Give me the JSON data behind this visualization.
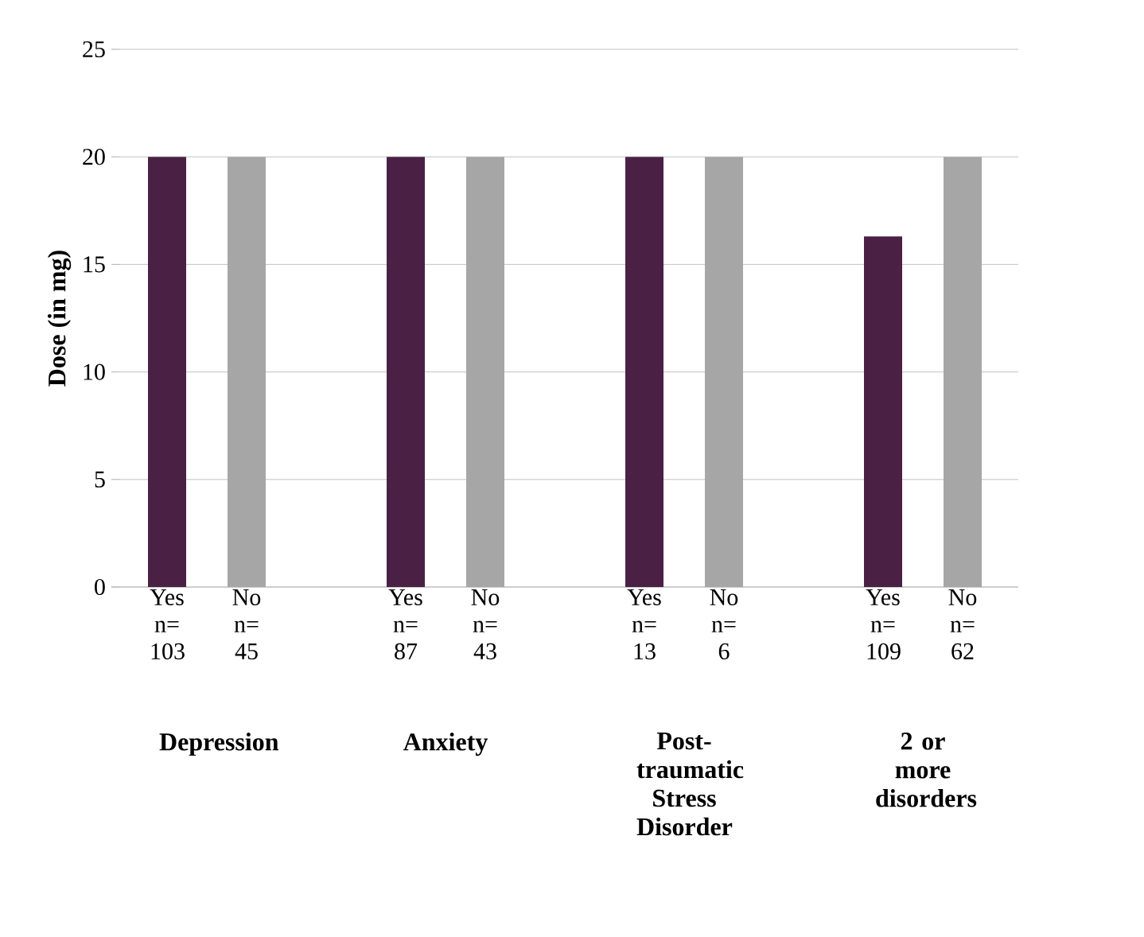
{
  "chart_data": {
    "type": "bar",
    "ylabel": "Dose (in mg)",
    "categories": [
      "Yes n= 103",
      "No n= 45",
      "Yes n= 87",
      "No n= 43",
      "Yes n= 13",
      "No n= 6",
      "Yes n= 109",
      "No n= 62"
    ],
    "values": [
      20,
      20,
      20,
      20,
      20,
      20,
      16.3,
      20
    ],
    "colors": [
      "#4a2145",
      "#a6a6a6",
      "#4a2145",
      "#a6a6a6",
      "#4a2145",
      "#a6a6a6",
      "#4a2145",
      "#a6a6a6"
    ],
    "annotations": [
      "Depression",
      "Anxiety",
      "Post-traumatic Stress Disorder",
      "2 or more disorders"
    ],
    "ylim": [
      0,
      25
    ],
    "yticks": [
      0,
      5,
      10,
      15,
      20,
      25
    ],
    "grid": "y"
  }
}
